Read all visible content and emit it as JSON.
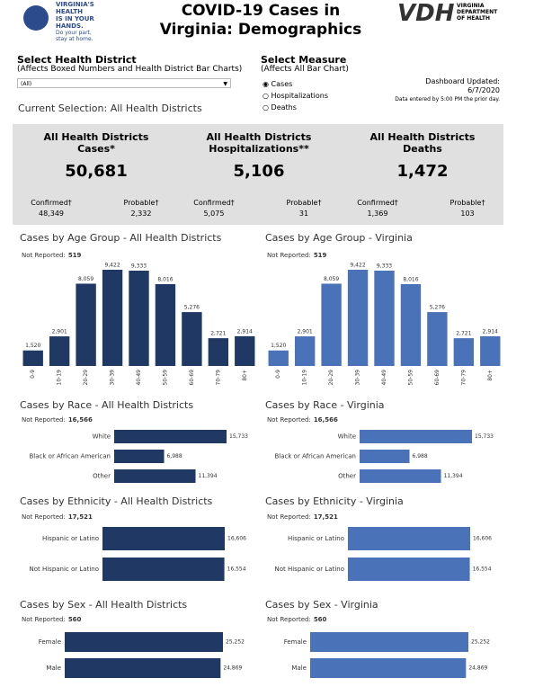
{
  "header": {
    "logo_lines": [
      "VIRGINIA'S",
      "HEALTH",
      "IS IN YOUR",
      "HANDS."
    ],
    "logo_tagline": [
      "Do your part,",
      "stay at home."
    ],
    "title": "COVID-19 Cases in Virginia: Demographics",
    "vdh": "VDH",
    "vdh_name": [
      "VIRGINIA",
      "DEPARTMENT",
      "OF HEALTH"
    ]
  },
  "controls": {
    "district_label": "Select Health District",
    "district_note": "(Affects Boxed Numbers and Health District Bar Charts)",
    "district_value": "(All)",
    "measure_label": "Select Measure",
    "measure_note": "(Affects All Bar Chart)",
    "measure_options": [
      "Cases",
      "Hospitalizations",
      "Deaths"
    ],
    "updated_label": "Dashboard Updated:",
    "updated_date": "6/7/2020",
    "updated_note": "Data entered by 5:00 PM the prior day.",
    "current_selection": "Current Selection: All Health Districts"
  },
  "summary": [
    {
      "title": "All Health Districts",
      "measure": "Cases*",
      "value": "50,681",
      "confirmed_label": "Confirmed†",
      "confirmed": "48,349",
      "probable_label": "Probable†",
      "probable": "2,332"
    },
    {
      "title": "All Health Districts",
      "measure": "Hospitalizations**",
      "value": "5,106",
      "confirmed_label": "Confirmed†",
      "confirmed": "5,075",
      "probable_label": "Probable†",
      "probable": "31"
    },
    {
      "title": "All Health Districts",
      "measure": "Deaths",
      "value": "1,472",
      "confirmed_label": "Confirmed†",
      "confirmed": "1,369",
      "probable_label": "Probable†",
      "probable": "103"
    }
  ],
  "chart_data": [
    {
      "type": "bar",
      "title": "Cases by Age Group - All Health Districts",
      "note_label": "Not Reported:",
      "note_value": "519",
      "categories": [
        "0-9",
        "10-19",
        "20-29",
        "30-39",
        "40-49",
        "50-59",
        "60-69",
        "70-79",
        "80+"
      ],
      "values": [
        1520,
        2901,
        8059,
        9422,
        9333,
        8016,
        5276,
        2721,
        2914
      ],
      "value_labels": [
        "1,520",
        "2,901",
        "8,059",
        "9,422",
        "9,333",
        "8,016",
        "5,276",
        "2,721",
        "2,914"
      ],
      "color": "#1f3864"
    },
    {
      "type": "bar",
      "title": "Cases by Age Group - Virginia",
      "note_label": "Not Reported:",
      "note_value": "519",
      "categories": [
        "0-9",
        "10-19",
        "20-29",
        "30-39",
        "40-49",
        "50-59",
        "60-69",
        "70-79",
        "80+"
      ],
      "values": [
        1520,
        2901,
        8059,
        9422,
        9333,
        8016,
        5276,
        2721,
        2914
      ],
      "value_labels": [
        "1,520",
        "2,901",
        "8,059",
        "9,422",
        "9,333",
        "8,016",
        "5,276",
        "2,721",
        "2,914"
      ],
      "color": "#4a72b8"
    },
    {
      "type": "barh",
      "title": "Cases by Race - All Health Districts",
      "note_label": "Not Reported:",
      "note_value": "16,566",
      "categories": [
        "White",
        "Black or African American",
        "Other"
      ],
      "values": [
        15733,
        6988,
        11394
      ],
      "value_labels": [
        "15,733",
        "6,988",
        "11,394"
      ],
      "color": "#1f3864"
    },
    {
      "type": "barh",
      "title": "Cases by Race - Virginia",
      "note_label": "Not Reported:",
      "note_value": "16,566",
      "categories": [
        "White",
        "Black or African American",
        "Other"
      ],
      "values": [
        15733,
        6988,
        11394
      ],
      "value_labels": [
        "15,733",
        "6,988",
        "11,394"
      ],
      "color": "#4a72b8"
    },
    {
      "type": "barh",
      "title": "Cases by Ethnicity - All Health Districts",
      "note_label": "Not Reported:",
      "note_value": "17,521",
      "categories": [
        "Hispanic or Latino",
        "Not Hispanic or Latino"
      ],
      "values": [
        16606,
        16554
      ],
      "value_labels": [
        "16,606",
        "16,554"
      ],
      "color": "#1f3864"
    },
    {
      "type": "barh",
      "title": "Cases by Ethnicity - Virginia",
      "note_label": "Not Reported:",
      "note_value": "17,521",
      "categories": [
        "Hispanic or Latino",
        "Not Hispanic or Latino"
      ],
      "values": [
        16606,
        16554
      ],
      "value_labels": [
        "16,606",
        "16,554"
      ],
      "color": "#4a72b8"
    },
    {
      "type": "barh",
      "title": "Cases by Sex - All Health Districts",
      "note_label": "Not Reported:",
      "note_value": "560",
      "categories": [
        "Female",
        "Male"
      ],
      "values": [
        25252,
        24869
      ],
      "value_labels": [
        "25,252",
        "24,869"
      ],
      "color": "#1f3864"
    },
    {
      "type": "barh",
      "title": "Cases by Sex - Virginia",
      "note_label": "Not Reported:",
      "note_value": "560",
      "categories": [
        "Female",
        "Male"
      ],
      "values": [
        25252,
        24869
      ],
      "value_labels": [
        "25,252",
        "24,869"
      ],
      "color": "#4a72b8"
    }
  ]
}
